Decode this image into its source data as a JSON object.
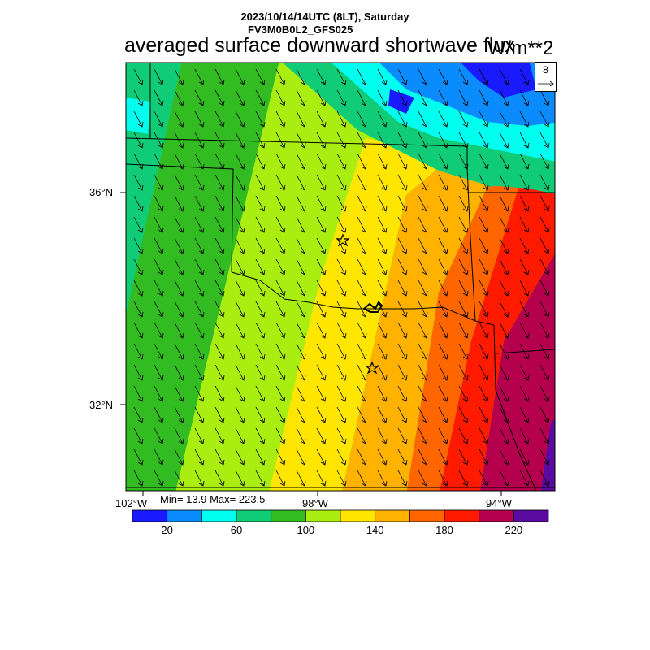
{
  "header": {
    "datetime": "2023/10/14/14UTC (8LT), Saturday",
    "model": "FV3M0B0L2_GFS025",
    "field_title": "averaged surface downward shortwave flux",
    "units": "W/m**2"
  },
  "map": {
    "lat_labels": [
      "36°N",
      "32°N"
    ],
    "lon_labels": [
      "102°W",
      "98°W",
      "94°W"
    ],
    "min_max": "Min= 13.9 Max= 223.5",
    "vector_reference": "8"
  },
  "colorbar": {
    "colors": [
      "#1a1aff",
      "#0a8cff",
      "#00ffee",
      "#11cc77",
      "#33bb22",
      "#aaee11",
      "#ffe600",
      "#ffb300",
      "#ff6600",
      "#ff1a00",
      "#b5004d",
      "#5a0aa0"
    ],
    "tick_labels": [
      "20",
      "60",
      "100",
      "140",
      "180",
      "220"
    ]
  }
}
